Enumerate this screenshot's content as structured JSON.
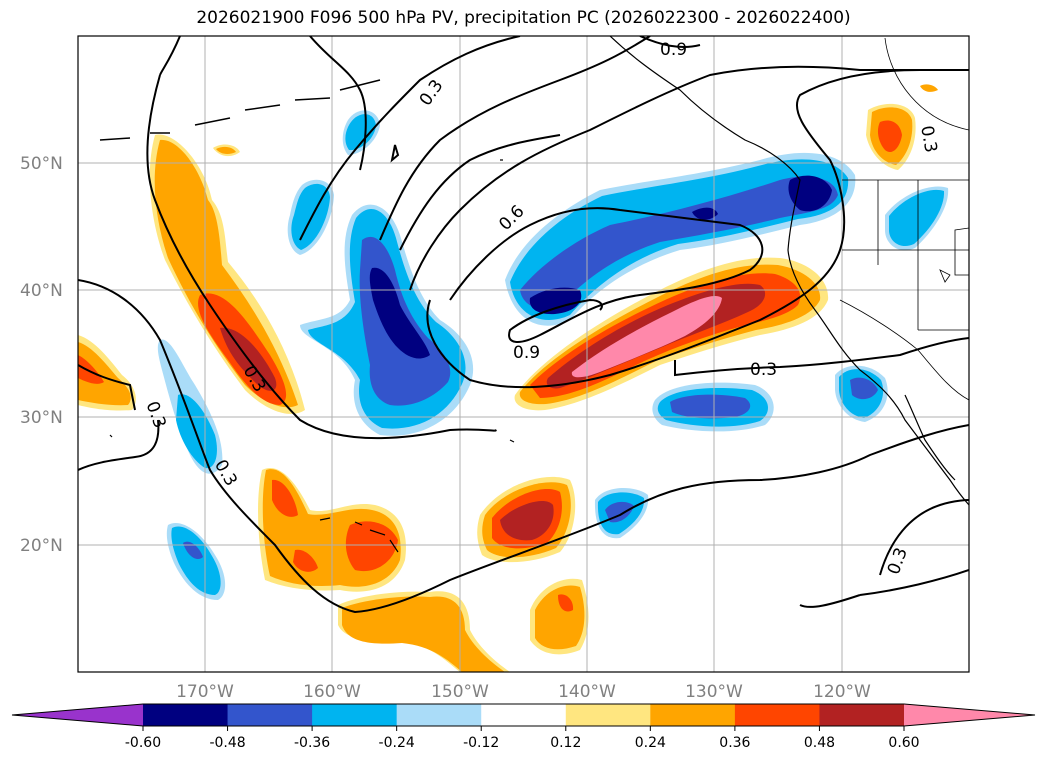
{
  "title": "2026021900 F096 500 hPa PV, precipitation PC (2026022300 - 2026022400)",
  "map": {
    "lat_labels": [
      "50°N",
      "40°N",
      "30°N",
      "20°N"
    ],
    "lon_labels": [
      "170°W",
      "160°W",
      "150°W",
      "140°W",
      "130°W",
      "120°W"
    ],
    "contour_labels": [
      "0.3",
      "0.6",
      "0.9",
      "0.9",
      "0.3",
      "0.3",
      "0.3",
      "0.3",
      "0.3",
      "0.3"
    ]
  },
  "colorbar": {
    "labels": [
      "-0.60",
      "-0.48",
      "-0.36",
      "-0.24",
      "-0.12",
      "0.12",
      "0.24",
      "0.36",
      "0.48",
      "0.60"
    ],
    "colors": [
      "#9933cc",
      "#000080",
      "#3355cc",
      "#00b4f0",
      "#aadcf8",
      "#ffffff",
      "#ffe680",
      "#ffa500",
      "#ff4500",
      "#b22222",
      "#ff88aa"
    ]
  },
  "colors": {
    "orange": "#ffa500",
    "red": "#ff4500",
    "darkred": "#b22222",
    "pink": "#ff88aa",
    "yellow": "#ffe680",
    "lightblue": "#aadcf8",
    "cyan": "#00b4f0",
    "blue": "#3355cc",
    "navy": "#000080"
  }
}
